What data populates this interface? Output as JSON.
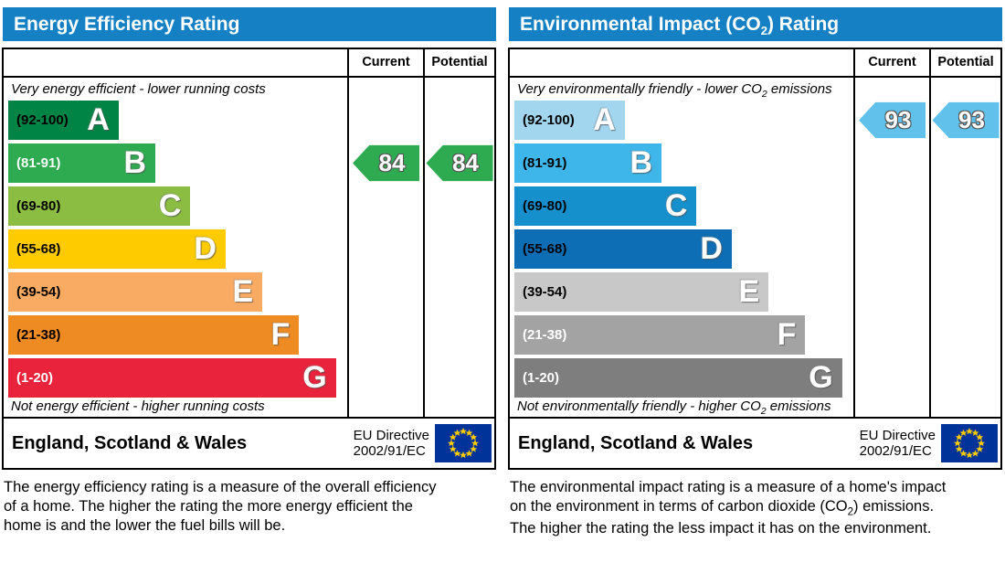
{
  "chart_data": [
    {
      "type": "bar",
      "title": "Energy Efficiency Rating",
      "categories": [
        "A (92-100)",
        "B (81-91)",
        "C (69-80)",
        "D (55-68)",
        "E (39-54)",
        "F (21-38)",
        "G (1-20)"
      ],
      "band_relative_widths_pct": [
        33,
        44,
        54.5,
        65,
        76,
        87,
        98
      ],
      "current": 84,
      "potential": 84,
      "current_band": "B",
      "potential_band": "B",
      "top_annotation": "Very energy efficient - lower running costs",
      "bottom_annotation": "Not energy efficient - higher running costs",
      "legend_position": "right-columns"
    },
    {
      "type": "bar",
      "title": "Environmental Impact (CO2) Rating",
      "categories": [
        "A (92-100)",
        "B (81-91)",
        "C (69-80)",
        "D (55-68)",
        "E (39-54)",
        "F (21-38)",
        "G (1-20)"
      ],
      "band_relative_widths_pct": [
        33,
        44,
        54.5,
        65,
        76,
        87,
        98
      ],
      "current": 93,
      "potential": 93,
      "current_band": "A",
      "potential_band": "A",
      "top_annotation": "Very environmentally friendly - lower CO2 emissions",
      "bottom_annotation": "Not environmentally friendly - higher CO2 emissions",
      "legend_position": "right-columns"
    }
  ],
  "header_color": "#1581c4",
  "panels": [
    {
      "title": "Energy Efficiency Rating",
      "columns": {
        "current": "Current",
        "potential": "Potential"
      },
      "top_note": "Very energy efficient - lower running costs",
      "bottom_note": "Not energy efficient - higher running costs",
      "bands": [
        {
          "letter": "A",
          "range": "(92-100)",
          "color": "#008445",
          "width_pct": 33,
          "label_color": "#000000"
        },
        {
          "letter": "B",
          "range": "(81-91)",
          "color": "#2eaa50",
          "width_pct": 44,
          "label_color": "#ffffff"
        },
        {
          "letter": "C",
          "range": "(69-80)",
          "color": "#8cbd43",
          "width_pct": 54.5,
          "label_color": "#000000"
        },
        {
          "letter": "D",
          "range": "(55-68)",
          "color": "#fecb00",
          "width_pct": 65,
          "label_color": "#000000"
        },
        {
          "letter": "E",
          "range": "(39-54)",
          "color": "#f9ab63",
          "width_pct": 76,
          "label_color": "#000000"
        },
        {
          "letter": "F",
          "range": "(21-38)",
          "color": "#ee8b23",
          "width_pct": 87,
          "label_color": "#000000"
        },
        {
          "letter": "G",
          "range": "(1-20)",
          "color": "#e9233c",
          "width_pct": 98,
          "label_color": "#ffffff"
        }
      ],
      "current": {
        "value": "84",
        "band_index": 1,
        "color": "#2eaa50"
      },
      "potential": {
        "value": "84",
        "band_index": 1,
        "color": "#2eaa50"
      },
      "footer": {
        "region": "England, Scotland & Wales",
        "directive1": "EU Directive",
        "directive2": "2002/91/EC"
      },
      "description": "The energy efficiency rating is a measure of the overall efficiency of a home. The higher the rating the more energy efficient the home is and the lower the fuel bills will be."
    },
    {
      "title_parts": [
        "Environmental Impact (CO",
        "2",
        ") Rating"
      ],
      "columns": {
        "current": "Current",
        "potential": "Potential"
      },
      "top_note_parts": [
        "Very environmentally friendly - lower CO",
        "2",
        " emissions"
      ],
      "bottom_note_parts": [
        "Not environmentally friendly - higher CO",
        "2",
        " emissions"
      ],
      "bands": [
        {
          "letter": "A",
          "range": "(92-100)",
          "color": "#a2d6ef",
          "width_pct": 33,
          "label_color": "#000000"
        },
        {
          "letter": "B",
          "range": "(81-91)",
          "color": "#3fb6e9",
          "width_pct": 44,
          "label_color": "#000000"
        },
        {
          "letter": "C",
          "range": "(69-80)",
          "color": "#1590cc",
          "width_pct": 54.5,
          "label_color": "#000000"
        },
        {
          "letter": "D",
          "range": "(55-68)",
          "color": "#0d6eb5",
          "width_pct": 65,
          "label_color": "#000000"
        },
        {
          "letter": "E",
          "range": "(39-54)",
          "color": "#c8c8c8",
          "width_pct": 76,
          "label_color": "#000000"
        },
        {
          "letter": "F",
          "range": "(21-38)",
          "color": "#a3a3a3",
          "width_pct": 87,
          "label_color": "#ffffff"
        },
        {
          "letter": "G",
          "range": "(1-20)",
          "color": "#7e7e7e",
          "width_pct": 98,
          "label_color": "#ffffff"
        }
      ],
      "current": {
        "value": "93",
        "band_index": 0,
        "color": "#62c1ea"
      },
      "potential": {
        "value": "93",
        "band_index": 0,
        "color": "#62c1ea"
      },
      "footer": {
        "region": "England, Scotland & Wales",
        "directive1": "EU Directive",
        "directive2": "2002/91/EC"
      },
      "description_parts": [
        "The environmental impact rating is a measure of a home's impact on the environment in terms of carbon dioxide (CO",
        "2",
        ") emissions. The higher the rating the less impact it has on the environment."
      ]
    }
  ]
}
